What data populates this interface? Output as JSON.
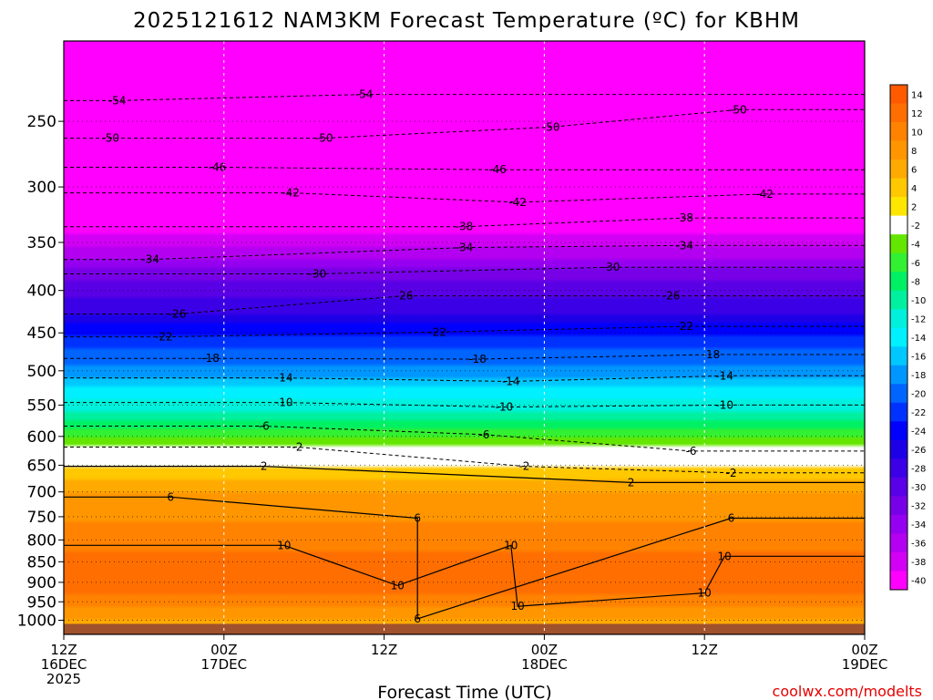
{
  "title": "2025121612 NAM3KM Forecast Temperature (ºC) for KBHM",
  "credit": "coolwx.com/modelts",
  "chart_data": {
    "type": "heatmap",
    "title": "2025121612 NAM3KM Forecast Temperature (ºC) for KBHM",
    "xlabel": "Forecast Time (UTC)",
    "ylabel": "",
    "x_ticks": [
      {
        "hour": 0,
        "lines": [
          "12Z",
          "16DEC",
          "2025"
        ]
      },
      {
        "hour": 12,
        "lines": [
          "00Z",
          "17DEC"
        ]
      },
      {
        "hour": 24,
        "lines": [
          "12Z"
        ]
      },
      {
        "hour": 36,
        "lines": [
          "00Z",
          "18DEC"
        ]
      },
      {
        "hour": 48,
        "lines": [
          "12Z"
        ]
      },
      {
        "hour": 60,
        "lines": [
          "00Z",
          "19DEC"
        ]
      }
    ],
    "xlim_hours": [
      0,
      60
    ],
    "y_scale": "log",
    "ylim_hpa": [
      200,
      1040
    ],
    "y_ticks": [
      250,
      300,
      350,
      400,
      450,
      500,
      550,
      600,
      650,
      700,
      750,
      800,
      850,
      900,
      950,
      1000
    ],
    "ground_pressure_hpa": 1000,
    "ground_color": "#a0522d",
    "grid": true,
    "legend": "right colorbar",
    "colorbar": [
      {
        "label": "14",
        "color": "#ff5a00"
      },
      {
        "label": "12",
        "color": "#ff6e00"
      },
      {
        "label": "10",
        "color": "#ff8200"
      },
      {
        "label": "8",
        "color": "#ff9600"
      },
      {
        "label": "6",
        "color": "#ffaa00"
      },
      {
        "label": "4",
        "color": "#ffc800"
      },
      {
        "label": "2",
        "color": "#ffe600"
      },
      {
        "label": "-2",
        "color": "#ffffff"
      },
      {
        "label": "-4",
        "color": "#64e600"
      },
      {
        "label": "-6",
        "color": "#32f032"
      },
      {
        "label": "-8",
        "color": "#00f064"
      },
      {
        "label": "-10",
        "color": "#00f0a0"
      },
      {
        "label": "-12",
        "color": "#00f0dc"
      },
      {
        "label": "-14",
        "color": "#00f0ff"
      },
      {
        "label": "-16",
        "color": "#00c8ff"
      },
      {
        "label": "-18",
        "color": "#0096ff"
      },
      {
        "label": "-20",
        "color": "#0064ff"
      },
      {
        "label": "-22",
        "color": "#0032ff"
      },
      {
        "label": "-24",
        "color": "#0000ff"
      },
      {
        "label": "-26",
        "color": "#1e00e6"
      },
      {
        "label": "-28",
        "color": "#3c00e6"
      },
      {
        "label": "-30",
        "color": "#5a00e6"
      },
      {
        "label": "-32",
        "color": "#7800e6"
      },
      {
        "label": "-34",
        "color": "#9600f0"
      },
      {
        "label": "-36",
        "color": "#b400f0"
      },
      {
        "label": "-38",
        "color": "#d200f5"
      },
      {
        "label": "-40",
        "color": "#ff00ff"
      }
    ],
    "temperature_profile": [
      {
        "p": 200,
        "t": -56
      },
      {
        "p": 235,
        "t": -54
      },
      {
        "p": 260,
        "t": -50
      },
      {
        "p": 285,
        "t": -46
      },
      {
        "p": 310,
        "t": -42
      },
      {
        "p": 340,
        "t": -38
      },
      {
        "p": 365,
        "t": -34
      },
      {
        "p": 390,
        "t": -30
      },
      {
        "p": 425,
        "t": -26
      },
      {
        "p": 455,
        "t": -22
      },
      {
        "p": 490,
        "t": -18
      },
      {
        "p": 525,
        "t": -14
      },
      {
        "p": 560,
        "t": -10
      },
      {
        "p": 585,
        "t": -6
      },
      {
        "p": 615,
        "t": -2
      },
      {
        "p": 628,
        "t": 0
      },
      {
        "p": 650,
        "t": 2
      },
      {
        "p": 700,
        "t": 6
      },
      {
        "p": 760,
        "t": 8
      },
      {
        "p": 830,
        "t": 10
      },
      {
        "p": 900,
        "t": 11
      },
      {
        "p": 950,
        "t": 9
      },
      {
        "p": 1000,
        "t": 6
      }
    ],
    "contour_labels": [
      {
        "text": "-54",
        "hour": 4,
        "p": 236
      },
      {
        "text": "-54",
        "hour": 22.5,
        "p": 232
      },
      {
        "text": "-50",
        "hour": 3.5,
        "p": 262
      },
      {
        "text": "-50",
        "hour": 19.5,
        "p": 262
      },
      {
        "text": "-50",
        "hour": 36.5,
        "p": 254
      },
      {
        "text": "-50",
        "hour": 50.5,
        "p": 242
      },
      {
        "text": "-46",
        "hour": 11.5,
        "p": 284
      },
      {
        "text": "-46",
        "hour": 32.5,
        "p": 286
      },
      {
        "text": "-42",
        "hour": 17,
        "p": 305
      },
      {
        "text": "-42",
        "hour": 34,
        "p": 313
      },
      {
        "text": "-42",
        "hour": 52.5,
        "p": 306
      },
      {
        "text": "-38",
        "hour": 30,
        "p": 335
      },
      {
        "text": "-38",
        "hour": 46.5,
        "p": 327
      },
      {
        "text": "-34",
        "hour": 6.5,
        "p": 367
      },
      {
        "text": "-34",
        "hour": 30,
        "p": 355
      },
      {
        "text": "-34",
        "hour": 46.5,
        "p": 353
      },
      {
        "text": "-30",
        "hour": 19,
        "p": 382
      },
      {
        "text": "-30",
        "hour": 41,
        "p": 375
      },
      {
        "text": "-26",
        "hour": 8.5,
        "p": 427
      },
      {
        "text": "-26",
        "hour": 25.5,
        "p": 406
      },
      {
        "text": "-26",
        "hour": 45.5,
        "p": 406
      },
      {
        "text": "-22",
        "hour": 7.5,
        "p": 455
      },
      {
        "text": "-22",
        "hour": 28,
        "p": 449
      },
      {
        "text": "-22",
        "hour": 46.5,
        "p": 442
      },
      {
        "text": "-18",
        "hour": 11,
        "p": 483
      },
      {
        "text": "-18",
        "hour": 31,
        "p": 484
      },
      {
        "text": "-18",
        "hour": 48.5,
        "p": 478
      },
      {
        "text": "-14",
        "hour": 16.5,
        "p": 510
      },
      {
        "text": "-14",
        "hour": 33.5,
        "p": 515
      },
      {
        "text": "-14",
        "hour": 49.5,
        "p": 507
      },
      {
        "text": "-10",
        "hour": 16.5,
        "p": 546
      },
      {
        "text": "-10",
        "hour": 33,
        "p": 553
      },
      {
        "text": "-10",
        "hour": 49.5,
        "p": 550
      },
      {
        "text": "-6",
        "hour": 15,
        "p": 583
      },
      {
        "text": "-6",
        "hour": 31.5,
        "p": 597
      },
      {
        "text": "-6",
        "hour": 47,
        "p": 625
      },
      {
        "text": "-2",
        "hour": 17.5,
        "p": 618
      },
      {
        "text": "-2",
        "hour": 34.5,
        "p": 652
      },
      {
        "text": "-2",
        "hour": 50,
        "p": 664
      },
      {
        "text": "2",
        "hour": 15,
        "p": 652
      },
      {
        "text": "2",
        "hour": 42.5,
        "p": 682
      },
      {
        "text": "6",
        "hour": 8,
        "p": 710
      },
      {
        "text": "6",
        "hour": 26.5,
        "p": 753
      },
      {
        "text": "6",
        "hour": 50,
        "p": 753
      },
      {
        "text": "10",
        "hour": 16.5,
        "p": 812
      },
      {
        "text": "10",
        "hour": 33.5,
        "p": 812
      },
      {
        "text": "10",
        "hour": 49.5,
        "p": 837
      },
      {
        "text": "10",
        "hour": 25,
        "p": 908
      },
      {
        "text": "10",
        "hour": 48,
        "p": 927
      },
      {
        "text": "10",
        "hour": 34,
        "p": 962
      },
      {
        "text": "6",
        "hour": 26.5,
        "p": 996
      }
    ]
  }
}
